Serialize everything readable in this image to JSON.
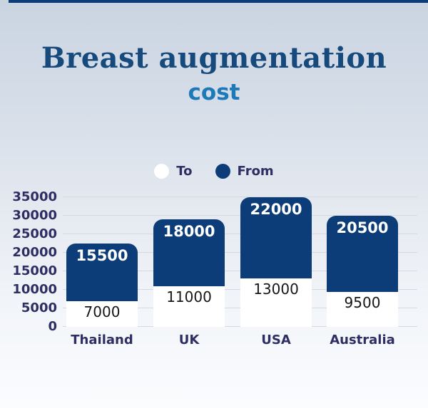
{
  "colors": {
    "accent_navy": "#0d3d78",
    "title_navy": "#164a7d",
    "subtitle_blue": "#1e79b8",
    "axis_text": "#2e2e63",
    "gridline": "#d4d9e1",
    "segment_to_fill": "#ffffff",
    "segment_to_text": "#161616",
    "segment_from_text": "#ffffff"
  },
  "header": {
    "title": "Breast augmentation",
    "subtitle": "cost"
  },
  "legend": {
    "items": [
      {
        "label": "To",
        "color": "#ffffff"
      },
      {
        "label": "From",
        "color": "#0d3d78"
      }
    ]
  },
  "chart_data": {
    "type": "bar",
    "stacked": true,
    "title": "Breast augmentation cost",
    "categories": [
      "Thailand",
      "UK",
      "USA",
      "Australia"
    ],
    "series": [
      {
        "name": "To",
        "color": "#ffffff",
        "values": [
          7000,
          11000,
          13000,
          9500
        ]
      },
      {
        "name": "From",
        "color": "#0d3d78",
        "values": [
          15500,
          18000,
          22000,
          20500
        ]
      }
    ],
    "xlabel": "",
    "ylabel": "",
    "ylim": [
      0,
      35000
    ],
    "yticks": [
      0,
      5000,
      10000,
      15000,
      20000,
      25000,
      30000,
      35000
    ],
    "grid": true,
    "legend_position": "top-center"
  }
}
